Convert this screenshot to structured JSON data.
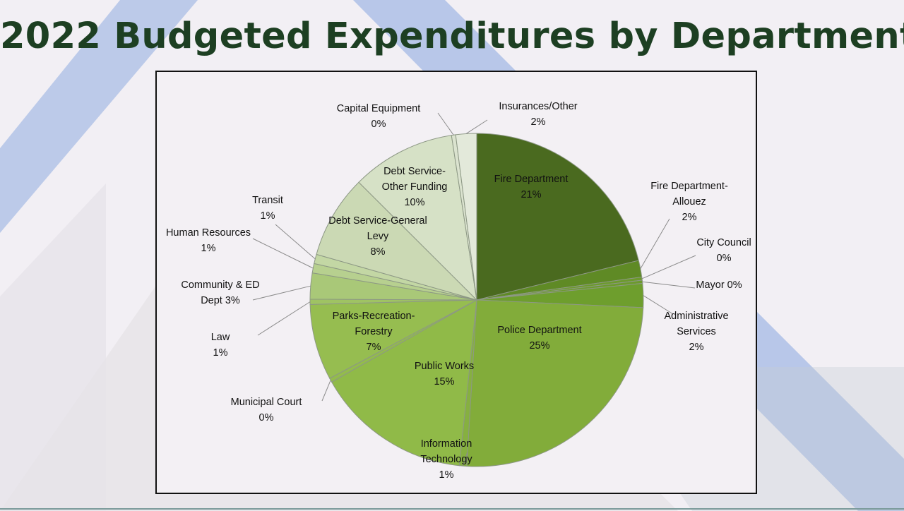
{
  "title": "2022 Budgeted Expenditures by Department",
  "colors": {
    "title": "#1d3f22",
    "background": "#f2eff4",
    "accent_blue": "#a9bde6",
    "frame": "#111111"
  },
  "chart_data": {
    "type": "pie",
    "title": "2022 Budgeted Expenditures by Department",
    "unit": "%",
    "start": "12 o'clock, clockwise",
    "slices": [
      {
        "label": "Fire Department",
        "value_label": "21%",
        "value": 21.0,
        "color": "#4a6a1f",
        "label_lines": [
          "Fire Department",
          "21%"
        ],
        "label_position": "inside"
      },
      {
        "label": "Fire Department-Allouez",
        "value_label": "2%",
        "value": 1.6,
        "color": "#5f8a25",
        "label_lines": [
          "Fire Department-",
          "Allouez",
          "2%"
        ],
        "label_position": "outside"
      },
      {
        "label": "City Council",
        "value_label": "0%",
        "value": 0.3,
        "color": "#6c9a2c",
        "label_lines": [
          "City Council",
          "0%"
        ],
        "label_position": "outside"
      },
      {
        "label": "Mayor",
        "value_label": "0%",
        "value": 0.3,
        "color": "#6c9a2c",
        "label_lines": [
          "Mayor 0%"
        ],
        "label_position": "outside"
      },
      {
        "label": "Administrative Services",
        "value_label": "2%",
        "value": 2.3,
        "color": "#6e9e2d",
        "label_lines": [
          "Administrative",
          "Services",
          "2%"
        ],
        "label_position": "outside"
      },
      {
        "label": "Police Department",
        "value_label": "25%",
        "value": 25.0,
        "color": "#82ac3a",
        "label_lines": [
          "Police Department",
          "25%"
        ],
        "label_position": "inside"
      },
      {
        "label": "Information Technology",
        "value_label": "1%",
        "value": 0.7,
        "color": "#86b040",
        "label_lines": [
          "Information",
          "Technology",
          "1%"
        ],
        "label_position": "outside"
      },
      {
        "label": "Public Works",
        "value_label": "15%",
        "value": 15.0,
        "color": "#90ba48",
        "label_lines": [
          "Public Works",
          "15%"
        ],
        "label_position": "inside"
      },
      {
        "label": "Municipal Court",
        "value_label": "0%",
        "value": 0.4,
        "color": "#93bb4d",
        "label_lines": [
          "Municipal Court",
          "0%"
        ],
        "label_position": "outside"
      },
      {
        "label": "Parks-Recreation-Forestry",
        "value_label": "7%",
        "value": 7.3,
        "color": "#96bd50",
        "label_lines": [
          "Parks-Recreation-",
          "Forestry",
          "7%"
        ],
        "label_position": "inside"
      },
      {
        "label": "Law",
        "value_label": "1%",
        "value": 0.5,
        "color": "#9fc363",
        "label_lines": [
          "Law",
          "1%"
        ],
        "label_position": "outside"
      },
      {
        "label": "Community & ED Dept",
        "value_label": "3%",
        "value": 2.5,
        "color": "#a9c878",
        "label_lines": [
          "Community & ED",
          "Dept 3%"
        ],
        "label_position": "outside"
      },
      {
        "label": "Human Resources",
        "value_label": "1%",
        "value": 0.9,
        "color": "#b7d08f",
        "label_lines": [
          "Human Resources",
          "1%"
        ],
        "label_position": "outside"
      },
      {
        "label": "Transit",
        "value_label": "1%",
        "value": 0.9,
        "color": "#c3d7a4",
        "label_lines": [
          "Transit",
          "1%"
        ],
        "label_position": "outside"
      },
      {
        "label": "Debt Service-General Levy",
        "value_label": "8%",
        "value": 8.0,
        "color": "#cbd9b4",
        "label_lines": [
          "Debt Service-General",
          "Levy",
          "8%"
        ],
        "label_position": "inside"
      },
      {
        "label": "Debt Service-Other Funding",
        "value_label": "10%",
        "value": 10.0,
        "color": "#d6e1c6",
        "label_lines": [
          "Debt Service-",
          "Other Funding",
          "10%"
        ],
        "label_position": "inside"
      },
      {
        "label": "Capital Equipment",
        "value_label": "0%",
        "value": 0.4,
        "color": "#dbe3cf",
        "label_lines": [
          "Capital Equipment",
          "0%"
        ],
        "label_position": "outside"
      },
      {
        "label": "Insurances/Other",
        "value_label": "2%",
        "value": 2.0,
        "color": "#e3e9da",
        "label_lines": [
          "Insurances/Other",
          "2%"
        ],
        "label_position": "outside"
      }
    ]
  }
}
